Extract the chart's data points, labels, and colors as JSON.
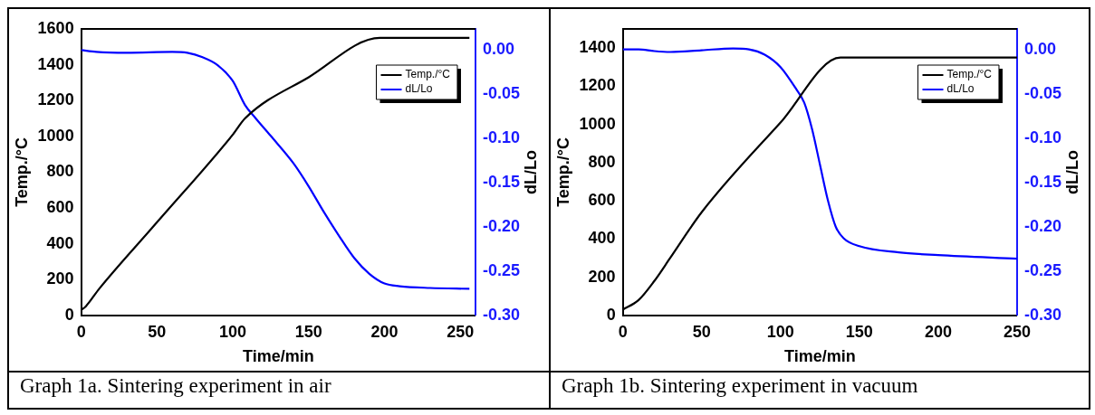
{
  "chart_data": [
    {
      "type": "line",
      "xlabel": "Time/min",
      "ylabel": "Temp./°C",
      "y2label": "dL/Lo",
      "annotations": [
        "Graph 1a. Sintering experiment in air"
      ],
      "legend": "top right",
      "grid": false,
      "xlim": [
        0,
        260
      ],
      "xticks": [
        0,
        50,
        100,
        150,
        200,
        250
      ],
      "ylim": [
        0,
        1600
      ],
      "yticks": [
        0,
        200,
        400,
        600,
        800,
        1000,
        1200,
        1400,
        1600
      ],
      "y2lim": [
        -0.3,
        0.024
      ],
      "y2ticks": [
        {
          "value": 0,
          "label": "0.00"
        },
        {
          "value": -0.05,
          "label": "-0.05"
        },
        {
          "value": -0.1,
          "label": "-0.10"
        },
        {
          "value": -0.15,
          "label": "-0.15"
        },
        {
          "value": -0.2,
          "label": "-0.20"
        },
        {
          "value": -0.25,
          "label": "-0.25"
        },
        {
          "value": -0.3,
          "label": "-0.30"
        }
      ],
      "series": [
        {
          "name": "Temp./°C",
          "color": "#000000",
          "x": [
            0,
            3,
            12,
            50,
            100,
            108,
            150,
            197,
            256
          ],
          "values": [
            30,
            50,
            150,
            520,
            1010,
            1100,
            1330,
            1550,
            1550
          ]
        },
        {
          "name": "dL/Lo",
          "color": "#0000ff",
          "axis": "y2",
          "x": [
            0,
            10,
            30,
            60,
            70,
            80,
            90,
            100,
            108,
            115,
            125,
            140,
            150,
            160,
            170,
            180,
            190,
            200,
            210,
            230,
            256
          ],
          "values": [
            0,
            -0.002,
            -0.003,
            -0.002,
            -0.003,
            -0.008,
            -0.017,
            -0.035,
            -0.062,
            -0.077,
            -0.097,
            -0.128,
            -0.154,
            -0.183,
            -0.21,
            -0.235,
            -0.253,
            -0.264,
            -0.267,
            -0.269,
            -0.27
          ]
        }
      ]
    },
    {
      "type": "line",
      "xlabel": "Time/min",
      "ylabel": "Temp./°C",
      "y2label": "dL/Lo",
      "annotations": [
        "Graph 1b. Sintering experiment in vacuum"
      ],
      "legend": "top right",
      "grid": false,
      "xlim": [
        0,
        250
      ],
      "xticks": [
        0,
        50,
        100,
        150,
        200,
        250
      ],
      "ylim": [
        0,
        1500
      ],
      "yticks": [
        0,
        200,
        400,
        600,
        800,
        1000,
        1200,
        1400
      ],
      "y2lim": [
        -0.3,
        0.023
      ],
      "y2ticks": [
        {
          "value": 0,
          "label": "0.00"
        },
        {
          "value": -0.05,
          "label": "-0.05"
        },
        {
          "value": -0.1,
          "label": "-0.10"
        },
        {
          "value": -0.15,
          "label": "-0.15"
        },
        {
          "value": -0.2,
          "label": "-0.20"
        },
        {
          "value": -0.25,
          "label": "-0.25"
        },
        {
          "value": -0.3,
          "label": "-0.30"
        }
      ],
      "series": [
        {
          "name": "Temp./°C",
          "color": "#000000",
          "x": [
            0,
            10,
            20,
            30,
            50,
            100,
            138,
            250
          ],
          "values": [
            30,
            80,
            180,
            300,
            540,
            1010,
            1350,
            1350
          ]
        },
        {
          "name": "dL/Lo",
          "color": "#0000ff",
          "axis": "y2",
          "x": [
            0,
            10,
            20,
            30,
            50,
            70,
            80,
            90,
            100,
            110,
            115,
            120,
            125,
            130,
            135,
            140,
            150,
            175,
            200,
            250
          ],
          "values": [
            0,
            0,
            -0.002,
            -0.003,
            -0.001,
            0.001,
            0,
            -0.006,
            -0.02,
            -0.045,
            -0.06,
            -0.09,
            -0.13,
            -0.17,
            -0.2,
            -0.213,
            -0.222,
            -0.229,
            -0.232,
            -0.236
          ]
        }
      ]
    }
  ]
}
